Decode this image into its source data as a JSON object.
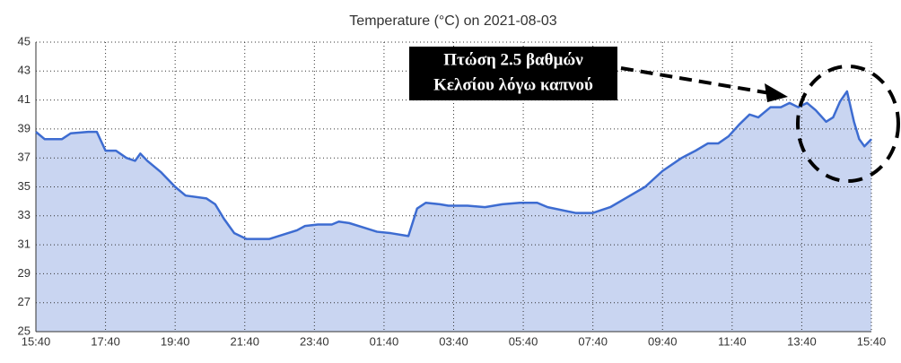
{
  "chart_data": {
    "type": "area",
    "title": "Temperature (°C) on 2021-08-03",
    "x": [
      0,
      0.25,
      0.5,
      0.75,
      1.0,
      1.5,
      1.75,
      2.0,
      2.3,
      2.6,
      2.85,
      3.0,
      3.2,
      3.6,
      4.0,
      4.3,
      4.9,
      5.15,
      5.4,
      5.7,
      6.05,
      6.7,
      7.1,
      7.5,
      7.73,
      8.1,
      8.5,
      8.7,
      9.0,
      9.4,
      9.8,
      10.2,
      10.7,
      10.95,
      11.2,
      11.6,
      11.85,
      12.4,
      12.9,
      13.4,
      13.9,
      14.4,
      14.7,
      15.5,
      16.0,
      16.5,
      17.0,
      17.5,
      18.0,
      18.55,
      18.95,
      19.3,
      19.6,
      19.9,
      20.2,
      20.5,
      20.75,
      21.1,
      21.4,
      21.65,
      21.9,
      22.15,
      22.4,
      22.7,
      22.9,
      23.1,
      23.3,
      23.5,
      23.65,
      23.8,
      24.0
    ],
    "series": [
      {
        "name": "Temperature",
        "color": "#3d6cd1",
        "fill": "#c9d5f1",
        "values": [
          38.8,
          38.3,
          38.3,
          38.3,
          38.7,
          38.8,
          38.8,
          37.5,
          37.5,
          37.0,
          36.8,
          37.3,
          36.8,
          36.0,
          35.0,
          34.4,
          34.2,
          33.8,
          32.8,
          31.8,
          31.4,
          31.4,
          31.7,
          32.0,
          32.3,
          32.4,
          32.4,
          32.6,
          32.5,
          32.2,
          31.9,
          31.8,
          31.6,
          33.5,
          33.9,
          33.8,
          33.7,
          33.7,
          33.6,
          33.8,
          33.9,
          33.9,
          33.6,
          33.2,
          33.2,
          33.6,
          34.3,
          35.0,
          36.1,
          37.0,
          37.5,
          38.0,
          38.0,
          38.5,
          39.3,
          40.0,
          39.8,
          40.5,
          40.5,
          40.8,
          40.5,
          40.8,
          40.3,
          39.5,
          39.8,
          40.9,
          41.6,
          39.5,
          38.3,
          37.8,
          38.3
        ]
      }
    ],
    "xlim": [
      0,
      24
    ],
    "xticks": [
      {
        "value": 0,
        "label": "15:40"
      },
      {
        "value": 2,
        "label": "17:40"
      },
      {
        "value": 4,
        "label": "19:40"
      },
      {
        "value": 6,
        "label": "21:40"
      },
      {
        "value": 8,
        "label": "23:40"
      },
      {
        "value": 10,
        "label": "01:40"
      },
      {
        "value": 12,
        "label": "03:40"
      },
      {
        "value": 14,
        "label": "05:40"
      },
      {
        "value": 16,
        "label": "07:40"
      },
      {
        "value": 18,
        "label": "09:40"
      },
      {
        "value": 20,
        "label": "11:40"
      },
      {
        "value": 22,
        "label": "13:40"
      },
      {
        "value": 24,
        "label": "15:40"
      }
    ],
    "ylim": [
      25,
      45
    ],
    "yticks": [
      25,
      27,
      29,
      31,
      33,
      35,
      37,
      39,
      41,
      43,
      45
    ],
    "grid": true,
    "annotation": [
      "Πτώση 2.5 βαθμών",
      "Κελσίου λόγω καπνού"
    ]
  }
}
